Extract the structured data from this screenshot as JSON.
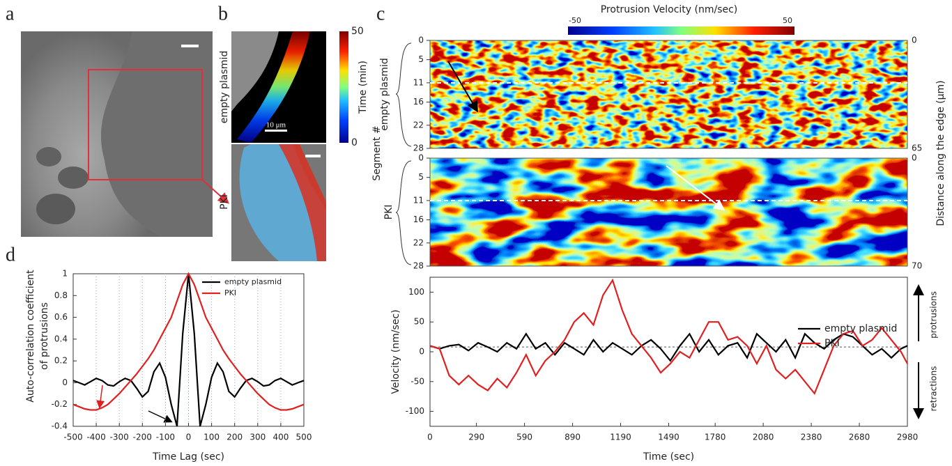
{
  "panel_labels": [
    "a",
    "b",
    "c",
    "d"
  ],
  "panel_b": {
    "row_labels": [
      "empty plasmid",
      "PKI"
    ],
    "scale_bar": "10 μm",
    "colorbar_label": "Time (min)",
    "colorbar_ticks": [
      0,
      50
    ]
  },
  "panel_c_heatmap": {
    "title": "Protrusion Velocity (nm/sec)",
    "color_ticks": [
      -50,
      50
    ],
    "y_label": "Segment #",
    "y_ticks": [
      0,
      5,
      11,
      16,
      22,
      28
    ],
    "right_label": "Distance along the edge (μm)",
    "groups": [
      {
        "name": "empty plasmid",
        "right_ticks": [
          0,
          65
        ]
      },
      {
        "name": "PKI",
        "right_ticks": [
          0,
          70
        ]
      }
    ]
  },
  "chart_data": [
    {
      "type": "line",
      "xlabel": "Time Lag (sec)",
      "ylabel": [
        "Auto-correlation coefficient",
        "of protrusions"
      ],
      "x": [
        -500,
        -475,
        -450,
        -425,
        -400,
        -375,
        -350,
        -325,
        -300,
        -275,
        -250,
        -225,
        -200,
        -175,
        -150,
        -125,
        -100,
        -75,
        -50,
        -25,
        0,
        25,
        50,
        75,
        100,
        125,
        150,
        175,
        200,
        225,
        250,
        275,
        300,
        325,
        350,
        375,
        400,
        425,
        450,
        475,
        500
      ],
      "series": [
        {
          "name": "empty plasmid",
          "color": "#000000",
          "values": [
            0.02,
            0,
            -0.02,
            0.01,
            0.04,
            0.02,
            -0.02,
            -0.03,
            0.01,
            0.04,
            0.02,
            -0.05,
            -0.13,
            -0.08,
            0.1,
            0.18,
            0.05,
            -0.2,
            -0.4,
            0.45,
            1,
            0.45,
            -0.4,
            -0.2,
            0.05,
            0.18,
            0.1,
            -0.08,
            -0.13,
            -0.05,
            0.02,
            0.04,
            0.01,
            -0.03,
            -0.02,
            0.02,
            0.04,
            0.01,
            -0.02,
            0,
            0.02
          ]
        },
        {
          "name": "PKI",
          "color": "#e02020",
          "values": [
            -0.2,
            -0.22,
            -0.24,
            -0.25,
            -0.25,
            -0.23,
            -0.2,
            -0.15,
            -0.1,
            -0.04,
            0.02,
            0.08,
            0.15,
            0.22,
            0.3,
            0.4,
            0.5,
            0.6,
            0.75,
            0.9,
            1,
            0.9,
            0.75,
            0.6,
            0.5,
            0.4,
            0.3,
            0.22,
            0.15,
            0.08,
            0.02,
            -0.04,
            -0.1,
            -0.15,
            -0.2,
            -0.23,
            -0.25,
            -0.25,
            -0.24,
            -0.22,
            -0.2
          ]
        }
      ],
      "xlim": [
        -500,
        500
      ],
      "xticks": [
        -500,
        -400,
        -300,
        -200,
        -100,
        0,
        100,
        200,
        300,
        400,
        500
      ],
      "ylim": [
        -0.4,
        1
      ],
      "yticks": [
        -0.4,
        -0.2,
        0,
        0.2,
        0.4,
        0.6,
        0.8,
        1
      ],
      "grid": "x"
    },
    {
      "type": "line",
      "xlabel": "Time (sec)",
      "ylabel": "Velocity  (nm/sec)",
      "annotations": [
        "protrusions",
        "retractions"
      ],
      "x": [
        0,
        60,
        120,
        180,
        240,
        300,
        360,
        420,
        480,
        540,
        600,
        660,
        720,
        780,
        840,
        900,
        960,
        1020,
        1080,
        1140,
        1200,
        1260,
        1320,
        1380,
        1440,
        1500,
        1560,
        1620,
        1680,
        1740,
        1800,
        1860,
        1920,
        1980,
        2040,
        2100,
        2160,
        2220,
        2280,
        2340,
        2400,
        2460,
        2520,
        2580,
        2640,
        2700,
        2760,
        2820,
        2880,
        2940,
        2980
      ],
      "series": [
        {
          "name": "empty plasmid",
          "color": "#000000",
          "values": [
            10,
            5,
            10,
            12,
            2,
            15,
            8,
            0,
            15,
            5,
            30,
            5,
            15,
            -5,
            15,
            5,
            -5,
            20,
            0,
            15,
            5,
            -5,
            10,
            20,
            5,
            -15,
            10,
            30,
            0,
            20,
            -5,
            10,
            15,
            -10,
            30,
            15,
            0,
            20,
            -10,
            30,
            15,
            5,
            20,
            30,
            25,
            10,
            -5,
            5,
            -10,
            5,
            10
          ]
        },
        {
          "name": "PKI",
          "color": "#e02020",
          "values": [
            10,
            5,
            -40,
            -55,
            -40,
            -55,
            -65,
            -45,
            -60,
            -35,
            -5,
            -40,
            -15,
            0,
            20,
            50,
            65,
            45,
            95,
            120,
            70,
            30,
            10,
            -10,
            -35,
            -20,
            0,
            -10,
            20,
            50,
            50,
            20,
            25,
            10,
            -20,
            10,
            -30,
            -45,
            -30,
            -50,
            -70,
            -30,
            10,
            30,
            35,
            10,
            20,
            40,
            20,
            0,
            -20
          ]
        }
      ],
      "hline": 8,
      "xlim": [
        0,
        2980
      ],
      "xticks": [
        0,
        290,
        590,
        890,
        1190,
        1490,
        1780,
        2080,
        2380,
        2680,
        2980
      ],
      "ylim": [
        -125,
        125
      ],
      "yticks": [
        -100,
        -50,
        0,
        50,
        100
      ],
      "grid": false
    }
  ]
}
